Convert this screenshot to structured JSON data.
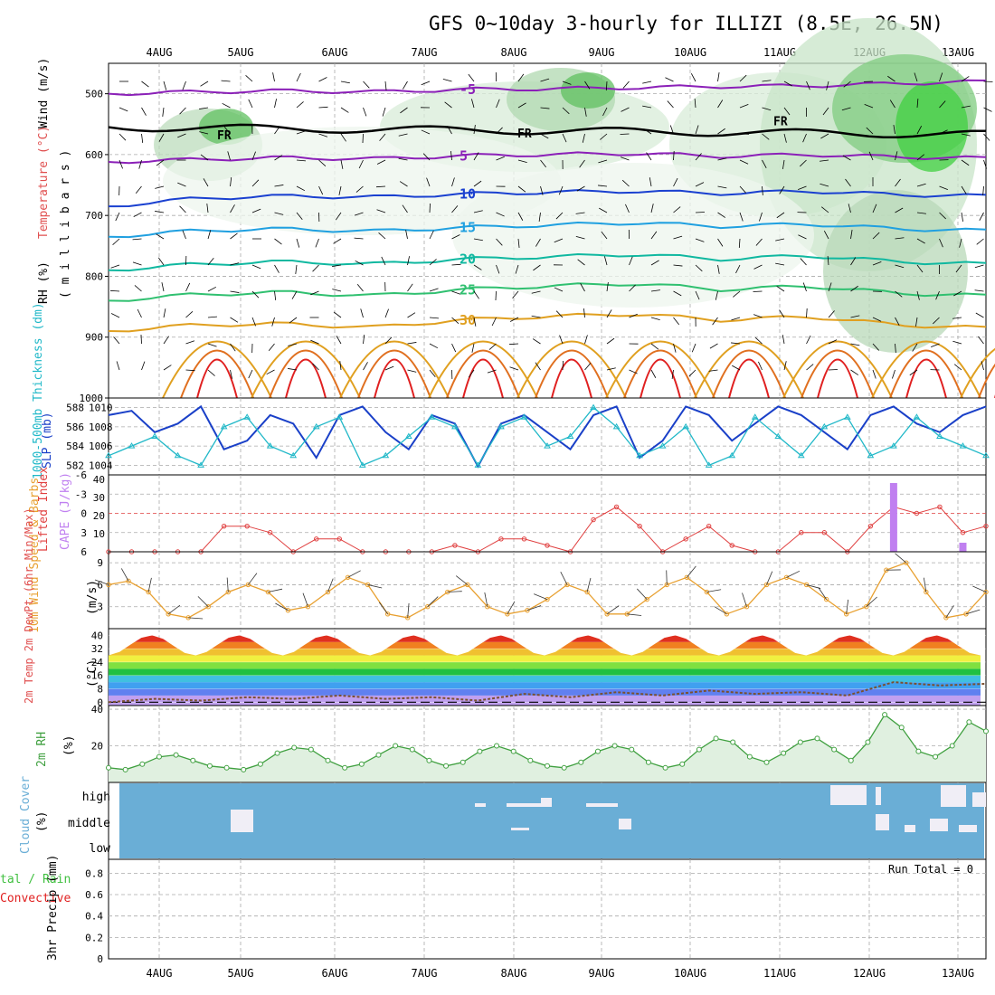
{
  "title": "GFS 0~10day 3-hourly for ILLIZI (8.5E, 26.5N)",
  "colors": {
    "purple_iso": "#8b20b8",
    "blue_iso": "#1a40d0",
    "lblue_iso": "#20a0e0",
    "teal_iso": "#10b8a0",
    "green_iso": "#30c070",
    "orange_iso": "#e0a020",
    "dorange_iso": "#e07020",
    "red_iso": "#e02020",
    "slp": "#1a40c8",
    "thickness": "#20b8c8",
    "lifted": "#e04040",
    "cape": "#c080f0",
    "wind": "#e8a030",
    "rh2m": "#40a040",
    "cloud": "#6aaed6",
    "precip_total": "#40c040",
    "precip_conv": "#e02020"
  },
  "chart_data": [
    {
      "type": "line",
      "panel": "upper-air",
      "ylabel_parts": [
        "RH (%)",
        "Temperature (°C)",
        "Wind (m/s)"
      ],
      "ylabel2": "( m i l l i b a r s )",
      "x_labels": [
        "4AUG",
        "5AUG",
        "6AUG",
        "7AUG",
        "8AUG",
        "9AUG",
        "10AUG",
        "11AUG",
        "12AUG",
        "13AUG"
      ],
      "y_ticks": [
        "500",
        "600",
        "700",
        "800",
        "900",
        "1000"
      ],
      "ylim": [
        1000,
        450
      ],
      "isotherms": [
        {
          "value": -5,
          "pressure": [
            500,
            497,
            495,
            497,
            493,
            492,
            490,
            488,
            487,
            483,
            480
          ]
        },
        {
          "value": 5,
          "pressure": [
            612,
            608,
            605,
            607,
            602,
            600,
            598,
            603,
            600,
            604,
            606
          ]
        },
        {
          "value": 10,
          "pressure": [
            685,
            672,
            668,
            670,
            665,
            662,
            660,
            664,
            660,
            666,
            668
          ]
        },
        {
          "value": 15,
          "pressure": [
            735,
            725,
            722,
            726,
            720,
            716,
            712,
            718,
            714,
            722,
            725
          ]
        },
        {
          "value": 20,
          "pressure": [
            790,
            780,
            776,
            780,
            772,
            768,
            764,
            772,
            766,
            776,
            780
          ]
        },
        {
          "value": 25,
          "pressure": [
            840,
            830,
            826,
            832,
            822,
            816,
            812,
            822,
            816,
            828,
            832
          ]
        },
        {
          "value": 30,
          "pressure": [
            890,
            880,
            878,
            884,
            872,
            866,
            862,
            872,
            866,
            880,
            885
          ]
        }
      ],
      "labels": [
        "-5",
        "5",
        "10",
        "15",
        "20",
        "25",
        "30",
        "FR"
      ]
    },
    {
      "type": "line",
      "panel": "slp-thickness",
      "ylabel_left": "1000-500mb Thickness (dm)",
      "ylabel_right": "SLP (mb)",
      "thick_ticks": [
        "588",
        "586",
        "584",
        "582"
      ],
      "slp_ticks": [
        "1010",
        "1008",
        "1006",
        "1004"
      ],
      "slp": [
        1010,
        1010.5,
        1008,
        1009,
        1011,
        1006,
        1007,
        1010,
        1009,
        1005,
        1010,
        1011,
        1008,
        1006,
        1010,
        1009,
        1004,
        1009,
        1010,
        1008,
        1006,
        1010,
        1011,
        1005,
        1007,
        1011,
        1010,
        1007,
        1009,
        1011,
        1010,
        1008,
        1006,
        1010,
        1011,
        1009,
        1008,
        1010,
        1011
      ],
      "thickness": [
        583,
        584,
        585,
        583,
        582,
        586,
        587,
        584,
        583,
        586,
        587,
        582,
        583,
        585,
        587,
        586,
        582,
        586,
        587,
        584,
        585,
        588,
        586,
        583,
        584,
        586,
        582,
        583,
        587,
        585,
        583,
        586,
        587,
        583,
        584,
        587,
        585,
        584,
        583
      ]
    },
    {
      "type": "bar",
      "panel": "lifted-cape",
      "ylabel_left": "Lifted Index",
      "ylabel_right": "CAPE (J/kg)",
      "li_ticks": [
        "-6",
        "-3",
        "0",
        "3",
        "6"
      ],
      "cape_ticks": [
        "40",
        "30",
        "20",
        "10"
      ],
      "lifted_index": [
        6,
        6,
        6,
        6,
        6,
        2,
        2,
        3,
        6,
        4,
        4,
        6,
        6,
        6,
        6,
        5,
        6,
        4,
        4,
        5,
        6,
        1,
        -1,
        2,
        6,
        4,
        2,
        5,
        6,
        6,
        3,
        3,
        6,
        2,
        -1,
        0,
        -1,
        3,
        2
      ],
      "cape": [
        0,
        0,
        0,
        0,
        0,
        0,
        0,
        0,
        0,
        0,
        0,
        0,
        0,
        0,
        0,
        0,
        0,
        0,
        0,
        0,
        0,
        0,
        0,
        0,
        0,
        0,
        0,
        0,
        0,
        0,
        0,
        0,
        0,
        0,
        38,
        0,
        0,
        5,
        0
      ]
    },
    {
      "type": "line",
      "panel": "10m-wind",
      "ylabel": "10m Wind Speed & Barbs",
      "yunit": "(m/s)",
      "y_ticks": [
        "9",
        "6",
        "3"
      ],
      "speed": [
        6,
        6.5,
        5,
        2,
        1.5,
        3,
        5,
        6,
        5,
        2.5,
        3,
        5,
        7,
        6,
        2,
        1.5,
        3,
        5,
        6,
        3,
        2,
        2.5,
        4,
        6,
        5,
        2,
        2,
        4,
        6,
        7,
        5,
        2,
        3,
        6,
        7,
        6,
        4,
        2,
        3,
        8,
        9,
        5,
        1.5,
        2,
        5
      ],
      "speed_points": 45
    },
    {
      "type": "area",
      "panel": "2m-temp",
      "ylabel": "2m Temp 2m DewPt (6hr Min/Max)",
      "yunit": "(°C)",
      "y_ticks": [
        "40",
        "32",
        "24",
        "16",
        "8",
        "0"
      ],
      "temp_max": [
        38,
        42,
        38,
        42,
        38,
        42,
        38,
        42,
        38,
        42,
        38,
        42,
        38,
        42,
        38,
        42,
        38,
        42,
        38,
        42
      ],
      "dewpoint": [
        0,
        2,
        1,
        3,
        2,
        4,
        2,
        3,
        1,
        5,
        3,
        6,
        4,
        7,
        5,
        6,
        4,
        12,
        10,
        11
      ]
    },
    {
      "type": "line",
      "panel": "2m-rh",
      "ylabel": "2m RH",
      "yunit": "(%)",
      "y_ticks": [
        "40",
        "20"
      ],
      "rh": [
        8,
        7,
        10,
        14,
        15,
        12,
        9,
        8,
        7,
        10,
        16,
        19,
        18,
        12,
        8,
        10,
        15,
        20,
        18,
        12,
        9,
        11,
        17,
        20,
        17,
        12,
        9,
        8,
        11,
        17,
        20,
        18,
        11,
        8,
        10,
        18,
        24,
        22,
        14,
        11,
        16,
        22,
        24,
        18,
        12,
        22,
        37,
        30,
        17,
        14,
        20,
        33,
        28
      ]
    },
    {
      "type": "heatmap",
      "panel": "cloud-cover",
      "ylabel": "Cloud Cover",
      "yunit": "(%)",
      "levels": [
        "high",
        "middle",
        "low"
      ]
    },
    {
      "type": "bar",
      "panel": "precip",
      "ylabel_left_lines": [
        "tal / Rain",
        "Convective"
      ],
      "ylabel": "3hr Precip (mm)",
      "y_ticks": [
        "0.8",
        "0.6",
        "0.4",
        "0.2",
        "0"
      ],
      "run_total_label": "Run Total = 0",
      "values": []
    }
  ],
  "x_axis": [
    "4AUG",
    "5AUG",
    "6AUG",
    "7AUG",
    "8AUG",
    "9AUG",
    "10AUG",
    "11AUG",
    "12AUG",
    "13AUG"
  ]
}
